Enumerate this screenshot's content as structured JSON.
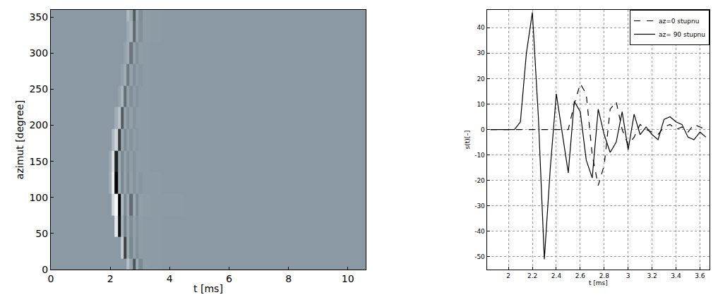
{
  "chart_data": [
    {
      "type": "heatmap",
      "xlabel": "t [ms]",
      "ylabel": "azimut [degree]",
      "x": [
        0,
        1.8,
        1.9,
        2.0,
        2.1,
        2.2,
        2.3,
        2.4,
        2.5,
        2.6,
        2.7,
        2.8,
        2.9,
        3.0,
        3.2,
        3.5,
        4,
        5,
        6,
        8,
        10.6
      ],
      "y": [
        0,
        30,
        60,
        90,
        120,
        150,
        180,
        210,
        240,
        270,
        300,
        330,
        360
      ],
      "z": [
        [
          0,
          0,
          0,
          0,
          0,
          0,
          0,
          0,
          0,
          18,
          5,
          -22,
          8,
          -5,
          2,
          1,
          0,
          0,
          0,
          0,
          0
        ],
        [
          0,
          0,
          0,
          0,
          0,
          0,
          0,
          25,
          -28,
          8,
          -6,
          4,
          -3,
          2,
          1,
          1,
          0,
          0,
          0,
          0,
          0
        ],
        [
          0,
          0,
          0,
          0,
          0,
          38,
          -45,
          12,
          -8,
          6,
          -4,
          3,
          -2,
          2,
          1,
          1,
          0,
          0,
          0,
          0,
          0
        ],
        [
          0,
          0,
          0,
          0,
          30,
          46,
          -51,
          16,
          -5,
          8,
          -15,
          8,
          -5,
          3,
          2,
          1,
          1,
          0,
          0,
          0,
          0
        ],
        [
          0,
          0,
          0,
          10,
          42,
          -48,
          10,
          -6,
          5,
          -4,
          3,
          -2,
          2,
          -1,
          1,
          1,
          0,
          0,
          0,
          0,
          0
        ],
        [
          0,
          0,
          0,
          8,
          35,
          -38,
          8,
          -5,
          4,
          -3,
          2,
          -2,
          1,
          1,
          1,
          0,
          0,
          0,
          0,
          0,
          0
        ],
        [
          0,
          0,
          0,
          0,
          15,
          28,
          -30,
          6,
          -4,
          3,
          -2,
          2,
          -1,
          1,
          1,
          0,
          0,
          0,
          0,
          0,
          0
        ],
        [
          0,
          0,
          0,
          0,
          0,
          10,
          20,
          -20,
          5,
          -3,
          3,
          -2,
          1,
          1,
          1,
          0,
          0,
          0,
          0,
          0,
          0
        ],
        [
          0,
          0,
          0,
          0,
          0,
          0,
          5,
          14,
          -14,
          4,
          -3,
          2,
          -2,
          1,
          1,
          0,
          0,
          0,
          0,
          0,
          0
        ],
        [
          0,
          0,
          0,
          0,
          0,
          0,
          0,
          4,
          10,
          -10,
          4,
          -3,
          2,
          -1,
          1,
          0,
          0,
          0,
          0,
          0,
          0
        ],
        [
          0,
          0,
          0,
          0,
          0,
          0,
          0,
          0,
          4,
          10,
          -12,
          4,
          -3,
          2,
          1,
          0,
          0,
          0,
          0,
          0,
          0
        ],
        [
          0,
          0,
          0,
          0,
          0,
          0,
          0,
          0,
          0,
          8,
          12,
          -15,
          5,
          -3,
          2,
          1,
          0,
          0,
          0,
          0,
          0
        ],
        [
          0,
          0,
          0,
          0,
          0,
          0,
          0,
          0,
          0,
          15,
          8,
          -20,
          8,
          -4,
          2,
          1,
          0,
          0,
          0,
          0,
          0
        ]
      ],
      "zlim": [
        -50,
        50
      ],
      "xlim": [
        0,
        10.6
      ],
      "ylim": [
        0,
        360
      ],
      "xticks": [
        0,
        2,
        4,
        6,
        8,
        10
      ],
      "yticks": [
        0,
        50,
        100,
        150,
        200,
        250,
        300,
        350
      ],
      "grid": false
    },
    {
      "type": "line",
      "xlabel": "t [ms]",
      "ylabel": "s(t)[–]",
      "x": [
        1.85,
        1.9,
        1.95,
        2.0,
        2.05,
        2.1,
        2.15,
        2.2,
        2.25,
        2.3,
        2.35,
        2.4,
        2.45,
        2.5,
        2.55,
        2.6,
        2.65,
        2.7,
        2.75,
        2.8,
        2.85,
        2.9,
        2.95,
        3.0,
        3.05,
        3.1,
        3.15,
        3.2,
        3.25,
        3.3,
        3.35,
        3.4,
        3.45,
        3.5,
        3.55,
        3.6,
        3.65
      ],
      "series": [
        {
          "name": "az=0 stupnu",
          "color": "#000000",
          "line_style": "dashed",
          "values": [
            0,
            0,
            0,
            0,
            0,
            0,
            0,
            0,
            0,
            0,
            0,
            0,
            0,
            0,
            10,
            18,
            14,
            -10,
            -22,
            -14,
            8,
            11,
            0,
            -6,
            -3,
            2,
            0,
            -1,
            -2,
            1,
            2,
            0,
            1,
            -1,
            2,
            1,
            0
          ]
        },
        {
          "name": "az= 90 stupnu",
          "color": "#000000",
          "line_style": "solid",
          "values": [
            0,
            0,
            0,
            0,
            0,
            3,
            30,
            46,
            5,
            -51,
            -15,
            14,
            -1,
            -17,
            11,
            7,
            -12,
            -19,
            8,
            -2,
            -9,
            -5,
            7,
            -8,
            6,
            -2,
            1,
            -2,
            -4,
            4,
            5,
            3,
            2,
            -3,
            -4,
            -1,
            -3
          ]
        }
      ],
      "xlim": [
        1.82,
        3.68
      ],
      "ylim": [
        -55,
        47
      ],
      "xticks": [
        2,
        2.2,
        2.4,
        2.6,
        2.8,
        3,
        3.2,
        3.4,
        3.6
      ],
      "yticks": [
        -50,
        -40,
        -30,
        -20,
        -10,
        0,
        10,
        20,
        30,
        40
      ],
      "grid": true,
      "legend": "upper right"
    }
  ]
}
